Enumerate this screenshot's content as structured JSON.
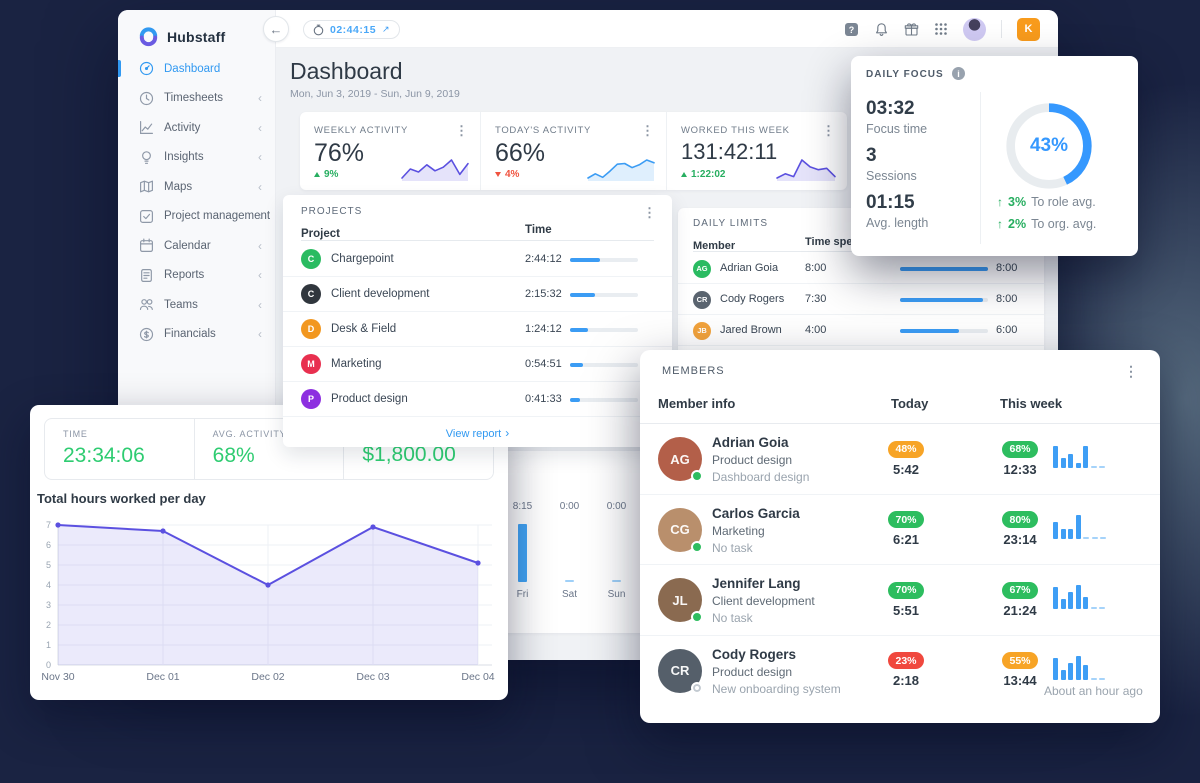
{
  "brand": {
    "name": "Hubstaff"
  },
  "topbar": {
    "timer": "02:44:15",
    "user_initial": "K"
  },
  "sidebar": {
    "items": [
      {
        "label": "Dashboard"
      },
      {
        "label": "Timesheets"
      },
      {
        "label": "Activity"
      },
      {
        "label": "Insights"
      },
      {
        "label": "Maps"
      },
      {
        "label": "Project management"
      },
      {
        "label": "Calendar"
      },
      {
        "label": "Reports"
      },
      {
        "label": "Teams"
      },
      {
        "label": "Financials"
      }
    ]
  },
  "page": {
    "title": "Dashboard",
    "date_range": "Mon, Jun 3, 2019 - Sun, Jun 9, 2019"
  },
  "stats": {
    "weekly": {
      "label": "WEEKLY ACTIVITY",
      "value": "76%",
      "delta": "9%",
      "direction": "up",
      "spark": [
        2,
        3.5,
        3,
        4.2,
        3.2,
        3.8,
        5,
        2.6,
        4.4
      ],
      "spark_color": "#5b50e0"
    },
    "today": {
      "label": "TODAY'S ACTIVITY",
      "value": "66%",
      "delta": "4%",
      "direction": "down",
      "spark": [
        2,
        2.6,
        2.1,
        3,
        4,
        4.1,
        3.5,
        3.9,
        4.6,
        4.2
      ],
      "spark_color": "#3b9cf4"
    },
    "worked": {
      "label": "WORKED THIS WEEK",
      "value": "131:42:11",
      "delta": "1:22:02",
      "direction": "up",
      "spark": [
        3,
        3.6,
        3.2,
        5.6,
        4.6,
        4.2,
        4.4,
        3.2
      ],
      "spark_color": "#5b50e0"
    }
  },
  "projects": {
    "title": "PROJECTS",
    "columns": {
      "project": "Project",
      "time": "Time"
    },
    "rows": [
      {
        "initial": "C",
        "color": "#2abb61",
        "name": "Chargepoint",
        "time": "2:44:12",
        "pct": 44
      },
      {
        "initial": "C",
        "color": "#30363d",
        "name": "Client development",
        "time": "2:15:32",
        "pct": 37
      },
      {
        "initial": "D",
        "color": "#f2971f",
        "name": "Desk & Field",
        "time": "1:24:12",
        "pct": 26
      },
      {
        "initial": "M",
        "color": "#e8304f",
        "name": "Marketing",
        "time": "0:54:51",
        "pct": 19
      },
      {
        "initial": "P",
        "color": "#8d2fe0",
        "name": "Product design",
        "time": "0:41:33",
        "pct": 15
      }
    ],
    "view_report": "View report"
  },
  "daily_limits": {
    "title": "DAILY LIMITS",
    "columns": {
      "member": "Member",
      "time_spent": "Time spent"
    },
    "rows": [
      {
        "initials": "AG",
        "avatar_color": "#2abb61",
        "name": "Adrian Goia",
        "spent": "8:00",
        "pct": 100,
        "limit": "8:00"
      },
      {
        "initials": "CR",
        "avatar_color": "#5a646f",
        "name": "Cody Rogers",
        "spent": "7:30",
        "pct": 94,
        "limit": "8:00"
      },
      {
        "initials": "JB",
        "avatar_color": "#f2a33c",
        "name": "Jared Brown",
        "spent": "4:00",
        "pct": 67,
        "limit": "6:00"
      }
    ]
  },
  "week_hours": {
    "columns": [
      {
        "value": "8:15",
        "label": "Fri",
        "hours": 8.25
      },
      {
        "value": "0:00",
        "label": "Sat",
        "hours": 0
      },
      {
        "value": "0:00",
        "label": "Sun",
        "hours": 0
      }
    ]
  },
  "daily_focus": {
    "title": "DAILY FOCUS",
    "metrics": [
      {
        "value": "03:32",
        "label": "Focus time"
      },
      {
        "value": "3",
        "label": "Sessions"
      },
      {
        "value": "01:15",
        "label": "Avg. length"
      }
    ],
    "donut_pct": 43,
    "donut_label": "43%",
    "donut_color": "#3598fe",
    "comparisons": [
      {
        "delta": "3%",
        "label": "To role avg."
      },
      {
        "delta": "2%",
        "label": "To org. avg."
      }
    ]
  },
  "members": {
    "title": "MEMBERS",
    "columns": {
      "info": "Member info",
      "today": "Today",
      "week": "This week"
    },
    "rows": [
      {
        "initials": "AG",
        "avatar_color": "#b35f49",
        "name": "Adrian Goia",
        "project": "Product design",
        "task": "Dashboard design",
        "online": true,
        "today_pct": "48%",
        "today_color": "orange",
        "today_time": "5:42",
        "week_pct": "68%",
        "week_color": "green",
        "week_time": "12:33",
        "spark": [
          9,
          4,
          6,
          2,
          9,
          0,
          0
        ],
        "note": ""
      },
      {
        "initials": "CG",
        "avatar_color": "#b98f6c",
        "name": "Carlos Garcia",
        "project": "Marketing",
        "task": "No task",
        "online": true,
        "today_pct": "70%",
        "today_color": "green",
        "today_time": "6:21",
        "week_pct": "80%",
        "week_color": "green",
        "week_time": "23:14",
        "spark": [
          7,
          4,
          4,
          10,
          0,
          0,
          0
        ],
        "note": ""
      },
      {
        "initials": "JL",
        "avatar_color": "#8a6a50",
        "name": "Jennifer Lang",
        "project": "Client development",
        "task": "No task",
        "online": true,
        "today_pct": "70%",
        "today_color": "green",
        "today_time": "5:51",
        "week_pct": "67%",
        "week_color": "green",
        "week_time": "21:24",
        "spark": [
          9,
          4,
          7,
          10,
          5,
          0,
          0
        ],
        "note": ""
      },
      {
        "initials": "CR",
        "avatar_color": "#555f6a",
        "name": "Cody Rogers",
        "project": "Product design",
        "task": "New onboarding system",
        "online": false,
        "today_pct": "23%",
        "today_color": "red",
        "today_time": "2:18",
        "week_pct": "55%",
        "week_color": "orange",
        "week_time": "13:44",
        "spark": [
          9,
          4,
          7,
          10,
          6,
          0,
          0
        ],
        "note": "About an hour ago"
      }
    ]
  },
  "summary": {
    "stats": [
      {
        "label": "TIME",
        "value": "23:34:06"
      },
      {
        "label": "AVG. ACTIVITY",
        "value": "68%"
      },
      {
        "label": "",
        "value": "$1,800.00"
      }
    ],
    "chart_title": "Total hours worked per day"
  },
  "chart_data": {
    "type": "area",
    "title": "Total hours worked per day",
    "x": [
      "Nov 30",
      "Dec 01",
      "Dec 02",
      "Dec 03",
      "Dec 04"
    ],
    "values": [
      7,
      6.7,
      4,
      6.9,
      5.1
    ],
    "ylim": [
      0,
      7
    ],
    "yticks": [
      0,
      1,
      2,
      3,
      4,
      5,
      6,
      7
    ],
    "line_color": "#5b50e0",
    "grid": true
  }
}
